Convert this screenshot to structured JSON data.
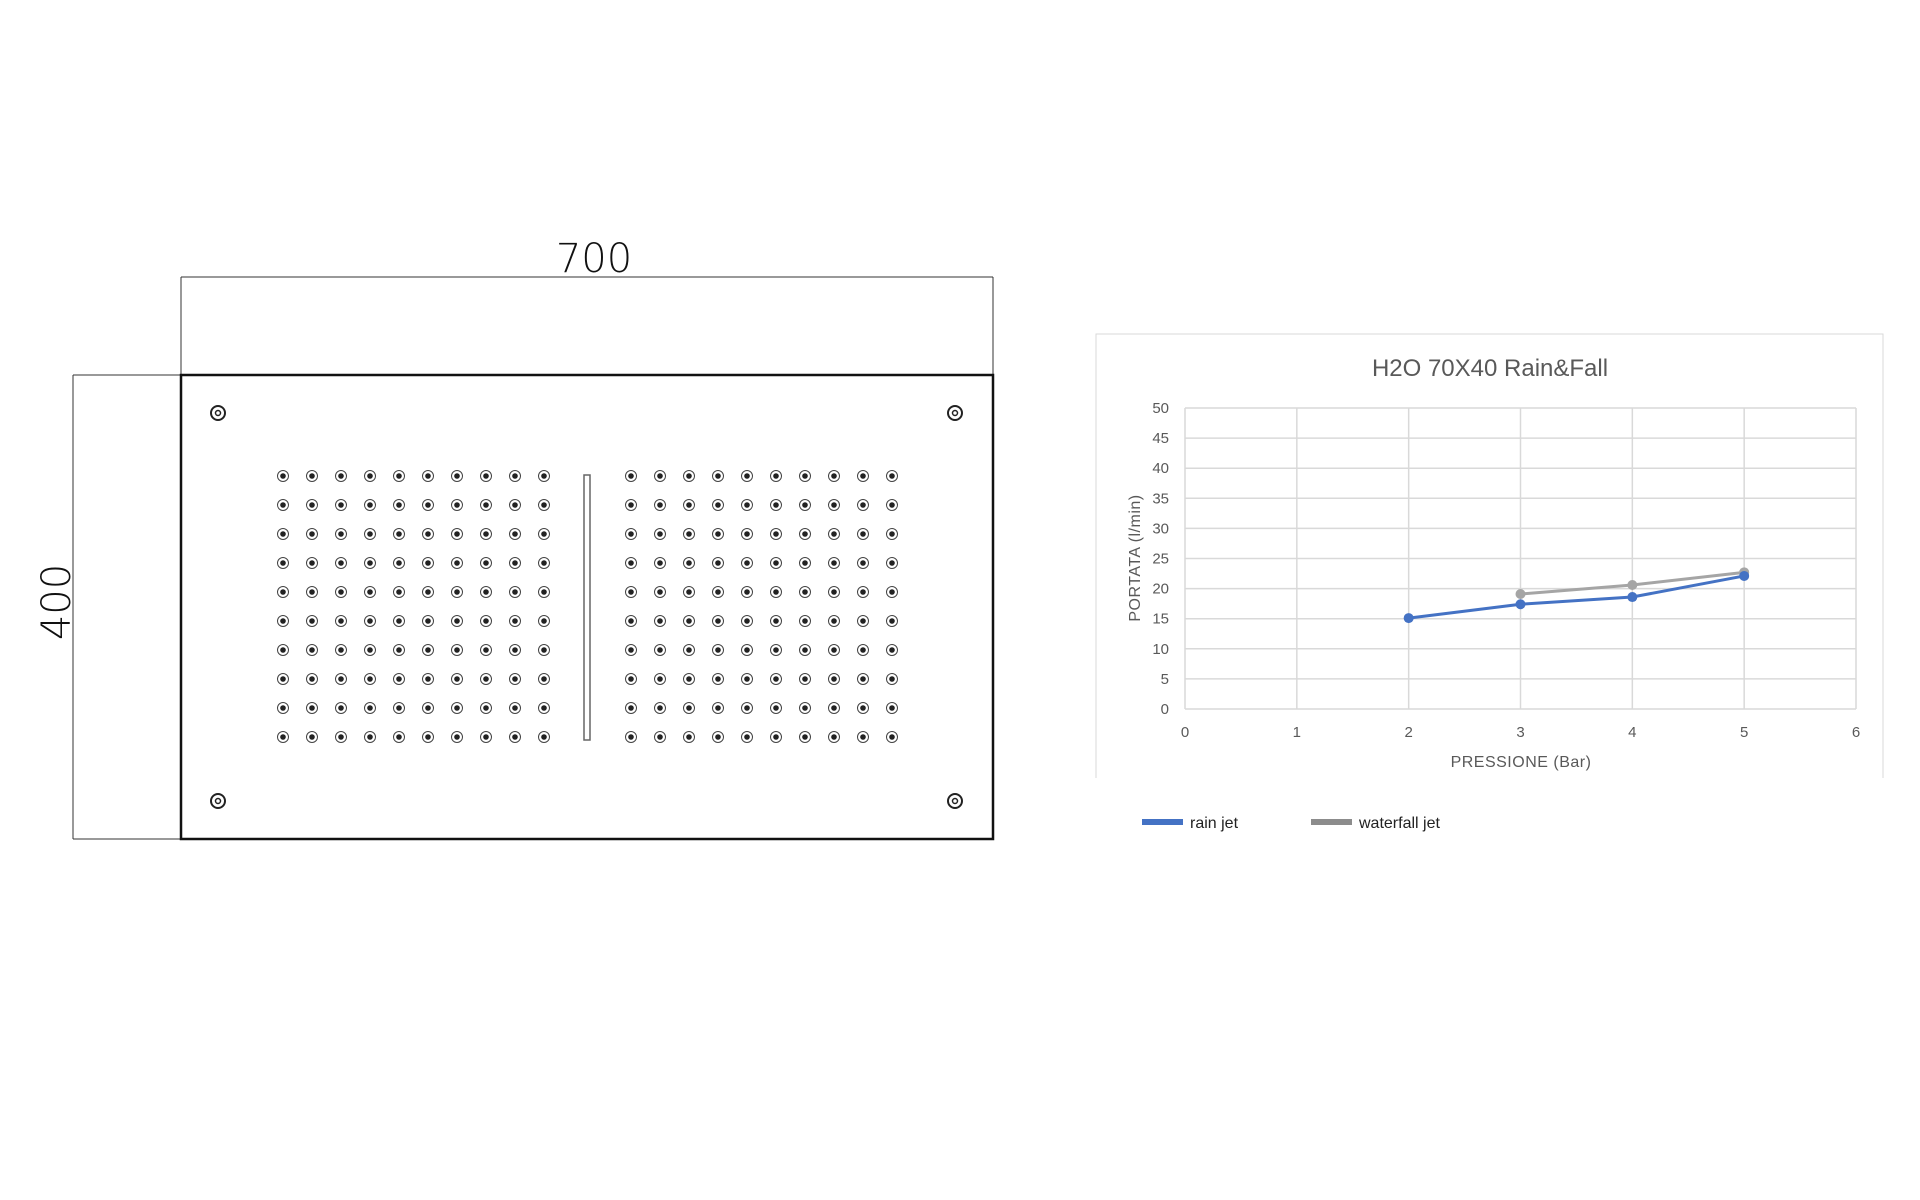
{
  "drawing": {
    "width_label": "700",
    "height_label": "400",
    "nozzle_grid": {
      "columns_per_group": 10,
      "rows": 10,
      "groups": 2
    }
  },
  "chart_data": {
    "type": "line",
    "title": "H2O 70X40 Rain&Fall",
    "xlabel": "PRESSIONE (Bar)",
    "ylabel": "PORTATA  (l/min)",
    "xlim": [
      0,
      6
    ],
    "ylim": [
      0,
      50
    ],
    "xticks": [
      "0",
      "1",
      "2",
      "3",
      "4",
      "5",
      "6"
    ],
    "yticks": [
      "0",
      "5",
      "10",
      "15",
      "20",
      "25",
      "30",
      "35",
      "40",
      "45",
      "50"
    ],
    "grid": true,
    "legend_position": "bottom-left",
    "series": [
      {
        "name": "rain jet",
        "color": "#4472C4",
        "x": [
          2,
          3,
          4,
          5
        ],
        "y": [
          15.1,
          17.4,
          18.6,
          22.1
        ]
      },
      {
        "name": "waterfall jet",
        "color": "#A5A5A5",
        "x": [
          3,
          4,
          5
        ],
        "y": [
          19.1,
          20.6,
          22.7
        ]
      }
    ]
  }
}
